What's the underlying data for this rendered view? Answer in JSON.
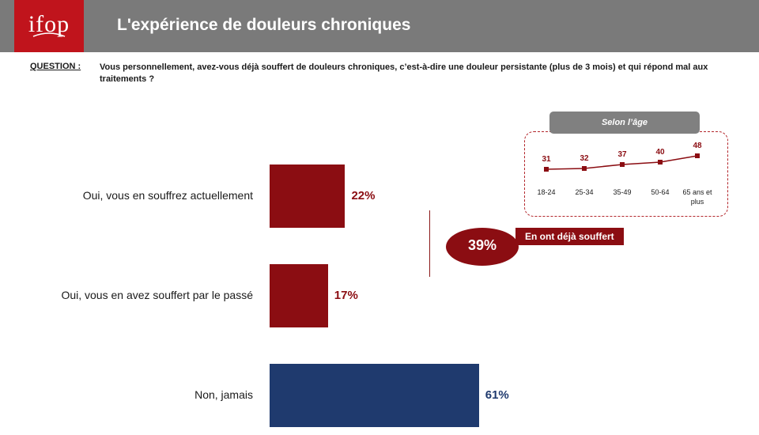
{
  "header": {
    "logo": "ifop",
    "title": "L'expérience de douleurs chroniques"
  },
  "question": {
    "label": "QUESTION :",
    "text": "Vous personnellement, avez-vous déjà souffert de douleurs chroniques, c’est-à-dire une douleur persistante (plus de 3 mois) et qui répond mal aux traitements ?"
  },
  "colors": {
    "header_gray": "#7a7a7a",
    "logo_red": "#c0141c",
    "dark_red": "#8b0d12",
    "navy": "#1f3a6e"
  },
  "chart_data": [
    {
      "type": "bar",
      "orientation": "horizontal",
      "categories": [
        "Oui, vous en souffrez actuellement",
        "Oui, vous en avez souffert par le passé",
        "Non, jamais"
      ],
      "values": [
        22,
        17,
        61
      ],
      "value_labels": [
        "22%",
        "17%",
        "61%"
      ],
      "bar_colors": [
        "#8b0d12",
        "#8b0d12",
        "#1f3a6e"
      ],
      "annotation": {
        "value": "39%",
        "label": "En ont déjà souffert"
      }
    },
    {
      "type": "line",
      "title": "Selon l’âge",
      "categories": [
        "18-24",
        "25-34",
        "35-49",
        "50-64",
        "65 ans et plus"
      ],
      "category_lines": [
        [
          "18-24"
        ],
        [
          "25-34"
        ],
        [
          "35-49"
        ],
        [
          "50-64"
        ],
        [
          "65 ans et",
          "plus"
        ]
      ],
      "values": [
        31,
        32,
        37,
        40,
        48
      ],
      "color": "#8b0d12"
    }
  ]
}
